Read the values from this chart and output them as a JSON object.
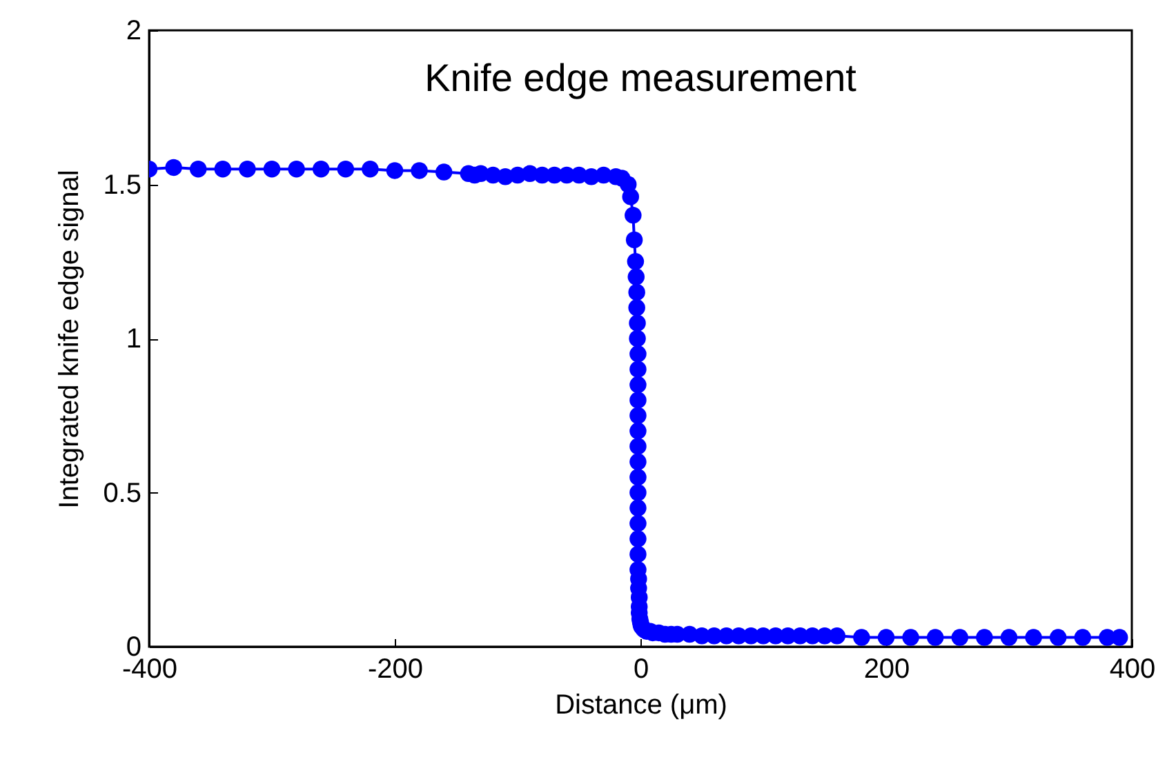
{
  "chart_data": {
    "type": "line",
    "title": "Knife edge measurement",
    "xlabel": "Distance (μm)",
    "ylabel": "Integrated knife edge signal",
    "xlim": [
      -400,
      400
    ],
    "xticks": [
      -400,
      -200,
      0,
      200,
      400
    ],
    "ylim": [
      0,
      2
    ],
    "yticks": [
      0,
      0.5,
      1,
      1.5,
      2
    ],
    "grid": false,
    "marker": "circle",
    "line_style": "solid",
    "series": [
      {
        "color": "#0000ff",
        "x": [
          -400,
          -380,
          -360,
          -340,
          -320,
          -300,
          -280,
          -260,
          -240,
          -220,
          -200,
          -180,
          -160,
          -140,
          -135,
          -130,
          -120,
          -110,
          -100,
          -90,
          -80,
          -70,
          -60,
          -50,
          -40,
          -30,
          -20,
          -15,
          -10,
          -8,
          -6,
          -5,
          -4,
          -3.5,
          -3,
          -3,
          -2.5,
          -2.5,
          -2,
          -2,
          -2,
          -2,
          -2,
          -2,
          -2,
          -2,
          -2,
          -2,
          -2,
          -2,
          -2,
          -2,
          -2,
          -1.5,
          -1.5,
          -1,
          -1,
          -1,
          -0.5,
          0,
          0.5,
          1,
          2,
          3,
          5,
          8,
          10,
          15,
          20,
          25,
          30,
          40,
          50,
          60,
          70,
          80,
          90,
          100,
          110,
          120,
          130,
          140,
          150,
          160,
          180,
          200,
          220,
          240,
          260,
          280,
          300,
          320,
          340,
          360,
          380,
          390
        ],
        "values": [
          1.55,
          1.555,
          1.55,
          1.55,
          1.55,
          1.55,
          1.55,
          1.55,
          1.55,
          1.55,
          1.545,
          1.545,
          1.54,
          1.535,
          1.53,
          1.535,
          1.53,
          1.525,
          1.53,
          1.535,
          1.53,
          1.53,
          1.53,
          1.53,
          1.525,
          1.53,
          1.525,
          1.52,
          1.5,
          1.46,
          1.4,
          1.32,
          1.25,
          1.2,
          1.15,
          1.1,
          1.05,
          1.0,
          0.95,
          0.9,
          0.85,
          0.8,
          0.75,
          0.7,
          0.65,
          0.6,
          0.55,
          0.5,
          0.45,
          0.4,
          0.35,
          0.3,
          0.25,
          0.22,
          0.19,
          0.16,
          0.13,
          0.11,
          0.09,
          0.08,
          0.07,
          0.065,
          0.06,
          0.055,
          0.05,
          0.05,
          0.045,
          0.045,
          0.04,
          0.04,
          0.04,
          0.04,
          0.035,
          0.035,
          0.035,
          0.035,
          0.035,
          0.035,
          0.035,
          0.035,
          0.035,
          0.035,
          0.035,
          0.035,
          0.03,
          0.03,
          0.03,
          0.03,
          0.03,
          0.03,
          0.03,
          0.03,
          0.03,
          0.03,
          0.03,
          0.03
        ]
      }
    ]
  }
}
